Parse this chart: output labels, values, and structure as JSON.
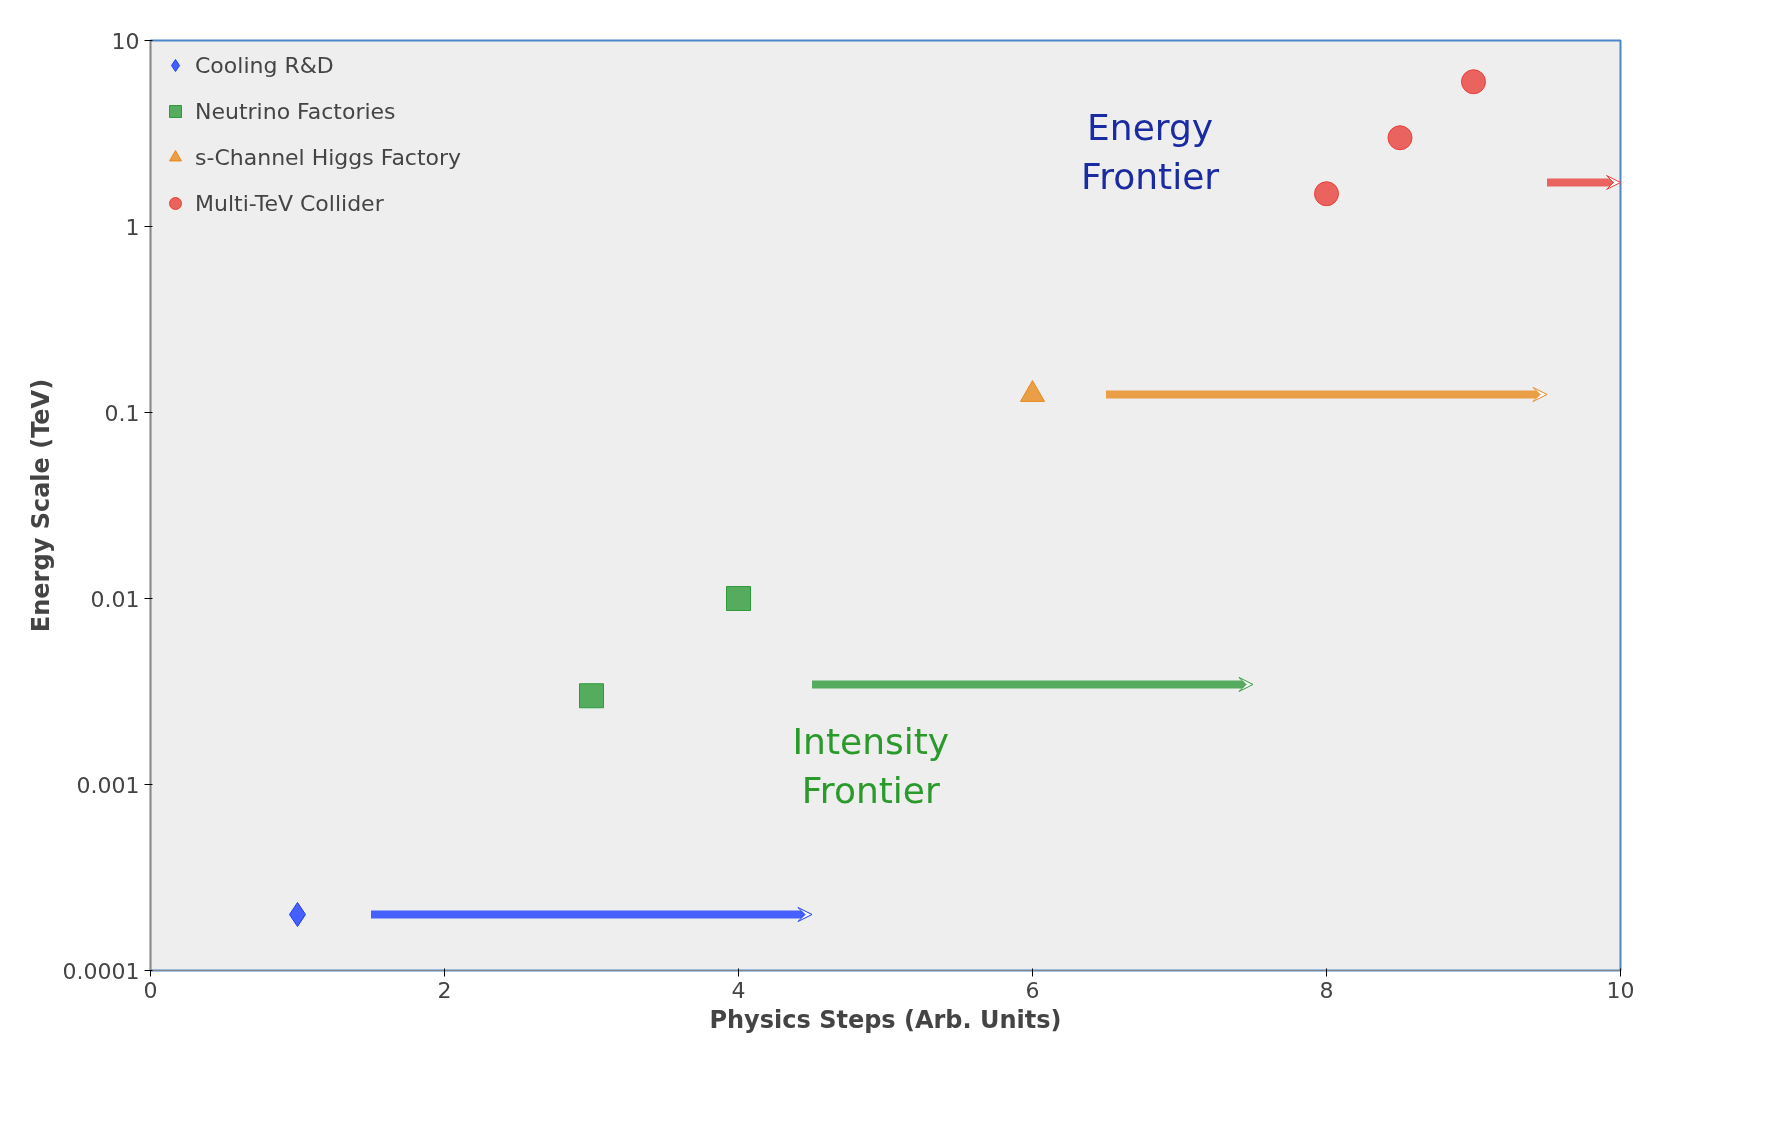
{
  "chart_data": {
    "type": "scatter",
    "xlabel": "Physics Steps (Arb. Units)",
    "ylabel": "Energy Scale (TeV)",
    "log": "y",
    "grid": false,
    "legend": "top left",
    "xlim": [
      0,
      10
    ],
    "ylim": [
      0.0001,
      10
    ],
    "xticks": [
      0,
      2,
      4,
      6,
      8,
      10
    ],
    "yticks": [
      0.0001,
      0.001,
      0.01,
      0.1,
      1,
      10
    ],
    "series": [
      {
        "name": "Cooling R&D",
        "color": "#1a3cff",
        "marker": "diamond",
        "x": [
          1
        ],
        "values": [
          0.0002
        ]
      },
      {
        "name": "Neutrino Factories",
        "color": "#2e9a3a",
        "marker": "square",
        "x": [
          3,
          4
        ],
        "values": [
          0.003,
          0.01
        ]
      },
      {
        "name": "s-Channel Higgs Factory",
        "color": "#e8891c",
        "marker": "triangle",
        "x": [
          6
        ],
        "values": [
          0.125
        ]
      },
      {
        "name": "Multi-TeV Collider",
        "color": "#e8403a",
        "marker": "circle",
        "x": [
          8,
          8.5,
          9
        ],
        "values": [
          1.5,
          3.0,
          6.0
        ]
      }
    ],
    "annotations": [
      "Energy\nFrontier",
      "Intensity\nFrontier"
    ]
  }
}
